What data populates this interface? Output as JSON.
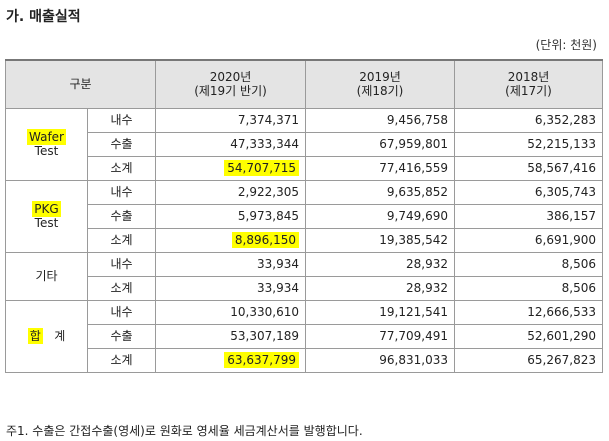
{
  "title": "가. 매출실적",
  "unit": "(단위: 천원)",
  "header": {
    "category": "구분",
    "years": [
      {
        "year": "2020년",
        "period": "(제19기 반기)"
      },
      {
        "year": "2019년",
        "period": "(제18기)"
      },
      {
        "year": "2018년",
        "period": "(제17기)"
      }
    ]
  },
  "groups": [
    {
      "name_lines": [
        "Wafer",
        "Test"
      ],
      "rows": [
        {
          "label": "내수",
          "values": [
            "7,374,371",
            "9,456,758",
            "6,352,283"
          ]
        },
        {
          "label": "수출",
          "values": [
            "47,333,344",
            "67,959,801",
            "52,215,133"
          ]
        },
        {
          "label": "소계",
          "values": [
            "54,707,715",
            "77,416,559",
            "58,567,416"
          ]
        }
      ]
    },
    {
      "name_lines": [
        "PKG",
        "Test"
      ],
      "rows": [
        {
          "label": "내수",
          "values": [
            "2,922,305",
            "9,635,852",
            "6,305,743"
          ]
        },
        {
          "label": "수출",
          "values": [
            "5,973,845",
            "9,749,690",
            "386,157"
          ]
        },
        {
          "label": "소계",
          "values": [
            "8,896,150",
            "19,385,542",
            "6,691,900"
          ]
        }
      ]
    },
    {
      "name_lines": [
        "기타"
      ],
      "rows": [
        {
          "label": "내수",
          "values": [
            "33,934",
            "28,932",
            "8,506"
          ]
        },
        {
          "label": "소계",
          "values": [
            "33,934",
            "28,932",
            "8,506"
          ]
        }
      ]
    },
    {
      "name_lines": [
        "합",
        "계"
      ],
      "rows": [
        {
          "label": "내수",
          "values": [
            "10,330,610",
            "19,121,541",
            "12,666,533"
          ]
        },
        {
          "label": "수출",
          "values": [
            "53,307,189",
            "77,709,491",
            "52,601,290"
          ]
        },
        {
          "label": "소계",
          "values": [
            "63,637,799",
            "96,831,033",
            "65,267,823"
          ]
        }
      ]
    }
  ],
  "footnote": "주1. 수출은 간접수출(영세)로 원화로 영세율 세금계산서를 발행합니다.",
  "highlight_color": "#ffff00"
}
